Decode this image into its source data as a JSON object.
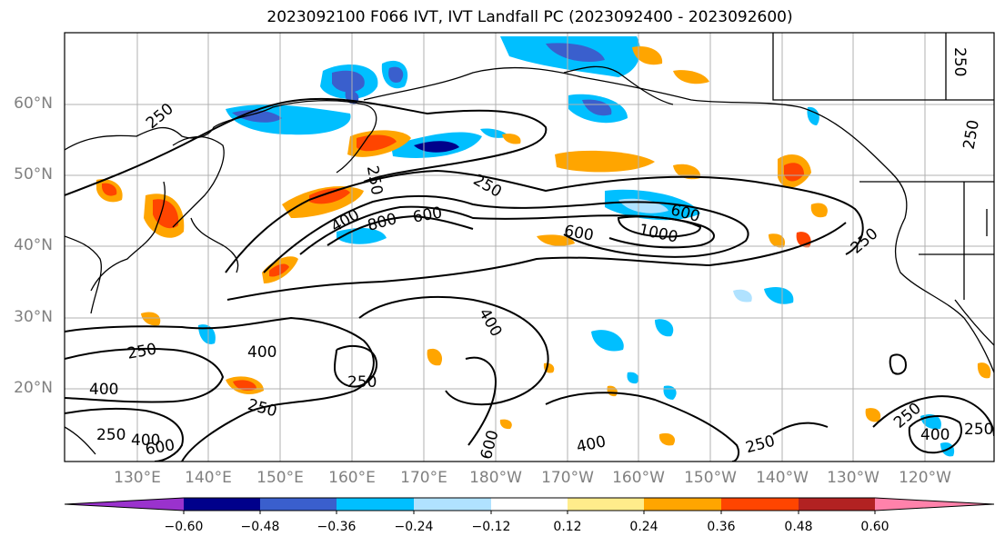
{
  "title": "2023092100 F066 IVT, IVT Landfall PC (2023092400 - 2023092600)",
  "lat_labels": [
    "60°N",
    "50°N",
    "40°N",
    "30°N",
    "20°N"
  ],
  "lon_labels": [
    "130°E",
    "140°E",
    "150°E",
    "160°E",
    "170°E",
    "180°W",
    "170°W",
    "160°W",
    "150°W",
    "140°W",
    "130°W",
    "120°W"
  ],
  "colorbar": {
    "colors": [
      "#9a32cd",
      "#00008b",
      "#3a5fcd",
      "#00bfff",
      "#b0e2ff",
      "#ffffff",
      "#ffec8b",
      "#ffa500",
      "#ff4500",
      "#b22222",
      "#ff82ab"
    ],
    "ticks": [
      "−0.60",
      "−0.48",
      "−0.36",
      "−0.24",
      "−0.12",
      "0.12",
      "0.24",
      "0.36",
      "0.48",
      "0.60"
    ]
  },
  "contour_labels": [
    "250",
    "250",
    "250",
    "250",
    "400",
    "800",
    "600",
    "250",
    "600",
    "1000",
    "600",
    "250",
    "400",
    "250",
    "250",
    "400",
    "250",
    "400",
    "600",
    "400",
    "250",
    "250",
    "400",
    "250",
    "600",
    "250",
    "400"
  ]
}
